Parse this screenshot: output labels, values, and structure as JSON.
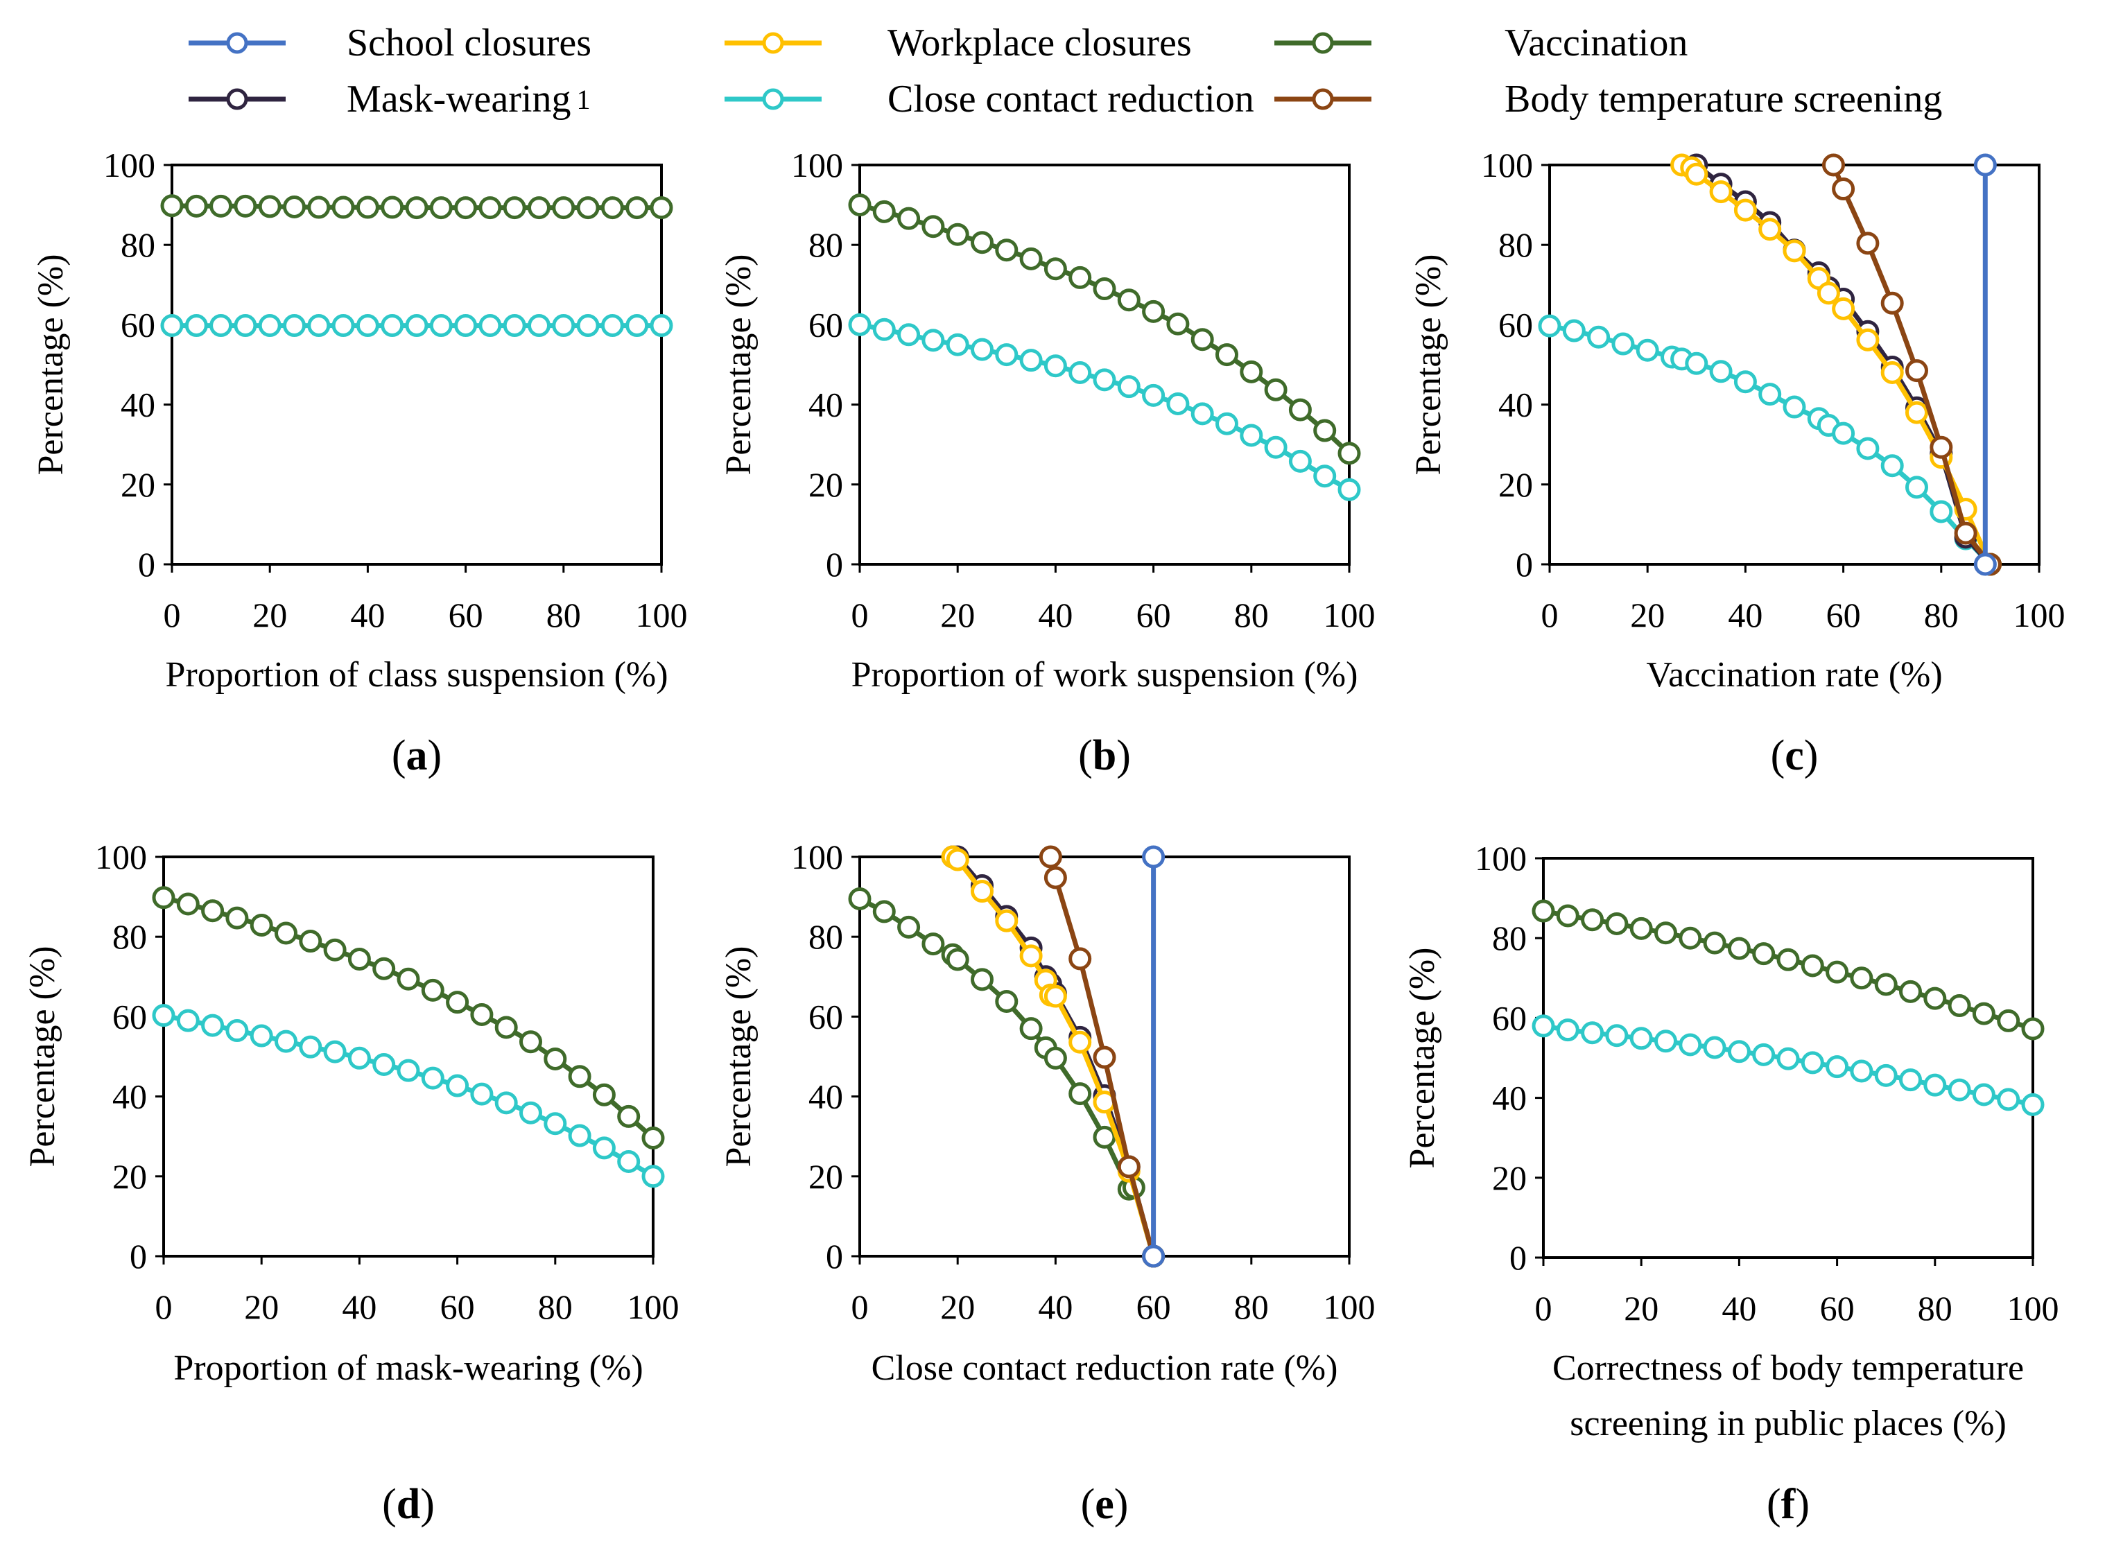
{
  "legend": [
    {
      "key": "school",
      "label": "School closures",
      "color": "#4472C4"
    },
    {
      "key": "workplace",
      "label": "Workplace closures",
      "color": "#FFC000"
    },
    {
      "key": "vaccination",
      "label": "Vaccination",
      "color": "#3F6B2A"
    },
    {
      "key": "mask",
      "label": "Mask-wearing",
      "superscript": "1",
      "color": "#2F2440"
    },
    {
      "key": "contact",
      "label": "Close contact reduction",
      "color": "#2EC8C8"
    },
    {
      "key": "temperature",
      "label": "Body temperature screening",
      "color": "#8B4513"
    }
  ],
  "chart_data": [
    {
      "panel": "a",
      "panel_label": "(a)",
      "type": "line",
      "xlabel": [
        "Proportion of class suspension (%)"
      ],
      "ylabel": "Percentage (%)",
      "xlim": [
        0,
        100
      ],
      "ylim": [
        0,
        100
      ],
      "xticks": [
        0,
        20,
        40,
        60,
        80,
        100
      ],
      "yticks": [
        0,
        20,
        40,
        60,
        80,
        100
      ],
      "series": [
        {
          "key": "vaccination",
          "x": [
            0,
            5,
            10,
            15,
            20,
            25,
            30,
            35,
            40,
            45,
            50,
            55,
            60,
            65,
            70,
            75,
            80,
            85,
            90,
            95,
            100
          ],
          "y": [
            89.8,
            89.7,
            89.7,
            89.7,
            89.6,
            89.5,
            89.4,
            89.4,
            89.4,
            89.4,
            89.3,
            89.3,
            89.3,
            89.3,
            89.3,
            89.3,
            89.3,
            89.3,
            89.3,
            89.3,
            89.3
          ]
        },
        {
          "key": "contact",
          "x": [
            0,
            5,
            10,
            15,
            20,
            25,
            30,
            35,
            40,
            45,
            50,
            55,
            60,
            65,
            70,
            75,
            80,
            85,
            90,
            95,
            100
          ],
          "y": [
            59.8,
            59.8,
            59.8,
            59.8,
            59.8,
            59.8,
            59.8,
            59.8,
            59.8,
            59.8,
            59.8,
            59.8,
            59.8,
            59.8,
            59.8,
            59.8,
            59.8,
            59.8,
            59.8,
            59.8,
            59.8
          ]
        }
      ]
    },
    {
      "panel": "b",
      "panel_label": "(b)",
      "type": "line",
      "xlabel": [
        "Proportion of work suspension (%)"
      ],
      "ylabel": "Percentage (%)",
      "xlim": [
        0,
        100
      ],
      "ylim": [
        0,
        100
      ],
      "xticks": [
        0,
        20,
        40,
        60,
        80,
        100
      ],
      "yticks": [
        0,
        20,
        40,
        60,
        80,
        100
      ],
      "series": [
        {
          "key": "vaccination",
          "x": [
            0,
            5,
            10,
            15,
            20,
            25,
            30,
            35,
            40,
            45,
            50,
            55,
            60,
            65,
            70,
            75,
            80,
            85,
            90,
            95,
            100
          ],
          "y": [
            90,
            88.3,
            86.6,
            84.6,
            82.6,
            80.6,
            78.7,
            76.5,
            74,
            71.8,
            69,
            66.2,
            63.3,
            60.2,
            56.3,
            52.5,
            48.2,
            43.7,
            38.7,
            33.5,
            27.8
          ]
        },
        {
          "key": "contact",
          "x": [
            0,
            5,
            10,
            15,
            20,
            25,
            30,
            35,
            40,
            45,
            50,
            55,
            60,
            65,
            70,
            75,
            80,
            85,
            90,
            95,
            100
          ],
          "y": [
            60,
            58.8,
            57.5,
            56.1,
            55,
            53.8,
            52.5,
            51.1,
            49.7,
            48,
            46.2,
            44.5,
            42.3,
            40.2,
            37.7,
            35.2,
            32.3,
            29.3,
            25.8,
            22.1,
            18.7
          ]
        }
      ]
    },
    {
      "panel": "c",
      "panel_label": "(c)",
      "type": "line",
      "xlabel": [
        "Vaccination rate (%)"
      ],
      "ylabel": "Percentage (%)",
      "xlim": [
        0,
        100
      ],
      "ylim": [
        0,
        100
      ],
      "xticks": [
        0,
        20,
        40,
        60,
        80,
        100
      ],
      "yticks": [
        0,
        20,
        40,
        60,
        80,
        100
      ],
      "series": [
        {
          "key": "contact",
          "x": [
            0,
            5,
            10,
            15,
            20,
            25,
            27,
            30,
            35,
            40,
            45,
            50,
            55,
            57,
            60,
            65,
            70,
            75,
            80,
            85,
            90
          ],
          "y": [
            59.7,
            58.5,
            56.9,
            55.2,
            53.6,
            51.9,
            51.4,
            50.3,
            48.3,
            45.7,
            42.6,
            39.4,
            36.5,
            34.8,
            32.8,
            29,
            24.7,
            19.3,
            13.2,
            6.4,
            0
          ]
        },
        {
          "key": "mask",
          "x": [
            30,
            35,
            40,
            45,
            50,
            55,
            57,
            60,
            65,
            70,
            75,
            80,
            85,
            90
          ],
          "y": [
            100,
            95.2,
            90.8,
            85.6,
            78.7,
            73,
            69.3,
            66.4,
            58.3,
            49.4,
            39.2,
            27.8,
            6.8,
            0
          ]
        },
        {
          "key": "workplace",
          "x": [
            27,
            29,
            30,
            35,
            40,
            45,
            50,
            55,
            57,
            60,
            65,
            70,
            75,
            80,
            85,
            90
          ],
          "y": [
            100,
            99.3,
            97.7,
            93.3,
            88.7,
            83.9,
            78.5,
            71.6,
            67.9,
            64,
            56.2,
            48,
            38,
            26.8,
            13.8,
            0
          ]
        },
        {
          "key": "temperature",
          "x": [
            58,
            60,
            65,
            70,
            75,
            80,
            85,
            90
          ],
          "y": [
            100,
            94,
            80.4,
            65.4,
            48.5,
            29.3,
            7.8,
            0
          ]
        },
        {
          "key": "vaccination",
          "x": [
            90
          ],
          "y": [
            0
          ]
        },
        {
          "key": "school",
          "x": [
            89,
            89
          ],
          "y": [
            0,
            100
          ]
        }
      ]
    },
    {
      "panel": "d",
      "panel_label": "(d)",
      "type": "line",
      "xlabel": [
        "Proportion of mask-wearing (%)"
      ],
      "ylabel": "Percentage (%)",
      "xlim": [
        0,
        100
      ],
      "ylim": [
        0,
        100
      ],
      "xticks": [
        0,
        20,
        40,
        60,
        80,
        100
      ],
      "yticks": [
        0,
        20,
        40,
        60,
        80,
        100
      ],
      "series": [
        {
          "key": "vaccination",
          "x": [
            0,
            5,
            10,
            15,
            20,
            25,
            30,
            35,
            40,
            45,
            50,
            55,
            60,
            65,
            70,
            75,
            80,
            85,
            90,
            95,
            100
          ],
          "y": [
            89.8,
            88.2,
            86.5,
            84.7,
            82.9,
            80.9,
            78.9,
            76.7,
            74.4,
            72,
            69.4,
            66.6,
            63.6,
            60.5,
            57.3,
            53.7,
            49.4,
            45,
            40.4,
            35,
            29.6
          ]
        },
        {
          "key": "contact",
          "x": [
            0,
            5,
            10,
            15,
            20,
            25,
            30,
            35,
            40,
            45,
            50,
            55,
            60,
            65,
            70,
            75,
            80,
            85,
            90,
            95,
            100
          ],
          "y": [
            60.3,
            59,
            57.8,
            56.5,
            55.2,
            53.8,
            52.4,
            51.2,
            49.6,
            48,
            46.5,
            44.6,
            42.7,
            40.6,
            38.4,
            35.9,
            33.2,
            30.2,
            27.1,
            23.7,
            20
          ]
        }
      ]
    },
    {
      "panel": "e",
      "panel_label": "(e)",
      "type": "line",
      "xlabel": [
        "Close contact reduction rate (%)"
      ],
      "ylabel": "Percentage (%)",
      "xlim": [
        0,
        100
      ],
      "ylim": [
        0,
        100
      ],
      "xticks": [
        0,
        20,
        40,
        60,
        80,
        100
      ],
      "yticks": [
        0,
        20,
        40,
        60,
        80,
        100
      ],
      "series": [
        {
          "key": "vaccination",
          "x": [
            0,
            5,
            10,
            15,
            19,
            20,
            25,
            30,
            35,
            38,
            40,
            45,
            50,
            55,
            56,
            60
          ],
          "y": [
            89.5,
            86.3,
            82.4,
            78.2,
            75.5,
            74.3,
            69.3,
            63.8,
            57,
            52.2,
            49.6,
            40.7,
            29.8,
            16.8,
            17.2,
            0
          ]
        },
        {
          "key": "mask",
          "x": [
            19,
            20,
            25,
            30,
            35,
            38,
            39,
            40,
            45,
            50,
            55,
            60
          ],
          "y": [
            100,
            100,
            92.8,
            85.1,
            77.2,
            70,
            68.2,
            65.8,
            54.8,
            40.2,
            22.4,
            0
          ]
        },
        {
          "key": "workplace",
          "x": [
            19,
            20,
            25,
            30,
            35,
            38,
            39,
            40,
            45,
            50,
            55,
            60
          ],
          "y": [
            100,
            99.3,
            91.4,
            84,
            75.2,
            69.1,
            65.4,
            65.1,
            53.6,
            38.6,
            21.3,
            0
          ]
        },
        {
          "key": "temperature",
          "x": [
            39,
            40,
            45,
            50,
            55,
            60
          ],
          "y": [
            100,
            94.8,
            74.5,
            49.8,
            22.4,
            0
          ]
        },
        {
          "key": "contact",
          "x": [
            60
          ],
          "y": [
            0
          ]
        },
        {
          "key": "school",
          "x": [
            60,
            60
          ],
          "y": [
            0,
            100
          ]
        }
      ]
    },
    {
      "panel": "f",
      "panel_label": "(f)",
      "type": "line",
      "xlabel": [
        "Correctness of body temperature",
        "screening in public places (%)"
      ],
      "ylabel": "Percentage (%)",
      "xlim": [
        0,
        100
      ],
      "ylim": [
        0,
        100
      ],
      "xticks": [
        0,
        20,
        40,
        60,
        80,
        100
      ],
      "yticks": [
        0,
        20,
        40,
        60,
        80,
        100
      ],
      "series": [
        {
          "key": "vaccination",
          "x": [
            0,
            5,
            10,
            15,
            20,
            25,
            30,
            35,
            40,
            45,
            50,
            55,
            60,
            65,
            70,
            75,
            80,
            85,
            90,
            95,
            100
          ],
          "y": [
            86.8,
            85.6,
            84.6,
            83.6,
            82.4,
            81.3,
            80,
            78.8,
            77.4,
            76.1,
            74.6,
            73.1,
            71.5,
            70,
            68.4,
            66.6,
            64.9,
            63.1,
            61.1,
            59.3,
            57.3
          ]
        },
        {
          "key": "contact",
          "x": [
            0,
            5,
            10,
            15,
            20,
            25,
            30,
            35,
            40,
            45,
            50,
            55,
            60,
            65,
            70,
            75,
            80,
            85,
            90,
            95,
            100
          ],
          "y": [
            58,
            57,
            56.3,
            55.6,
            54.9,
            54.2,
            53.3,
            52.6,
            51.6,
            50.8,
            49.8,
            48.8,
            47.8,
            46.7,
            45.6,
            44.5,
            43.2,
            42,
            40.8,
            39.6,
            38.3
          ]
        }
      ]
    }
  ]
}
